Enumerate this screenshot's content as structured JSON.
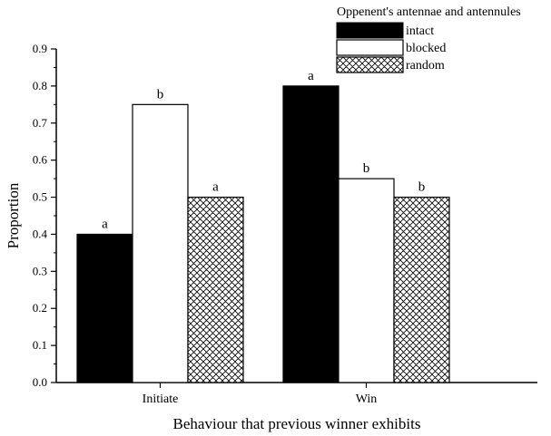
{
  "chart_data": {
    "type": "bar",
    "title": "",
    "xlabel": "Behaviour that previous winner exhibits",
    "ylabel": "Proportion",
    "ylim": [
      0,
      0.9
    ],
    "yticks": [
      "0.0",
      "0.1",
      "0.2",
      "0.3",
      "0.4",
      "0.5",
      "0.6",
      "0.7",
      "0.8",
      "0.9"
    ],
    "categories": [
      "Initiate",
      "Win"
    ],
    "legend_title": "Oppenent's antennae and antennules",
    "legend_position": "top-right",
    "grid": false,
    "series": [
      {
        "name": "intact",
        "values": [
          0.4,
          0.8
        ],
        "labels": [
          "a",
          "a"
        ],
        "fill": "solid-black"
      },
      {
        "name": "blocked",
        "values": [
          0.75,
          0.55
        ],
        "labels": [
          "b",
          "b"
        ],
        "fill": "white"
      },
      {
        "name": "random",
        "values": [
          0.5,
          0.5
        ],
        "labels": [
          "a",
          "b"
        ],
        "fill": "crosshatch"
      }
    ]
  }
}
